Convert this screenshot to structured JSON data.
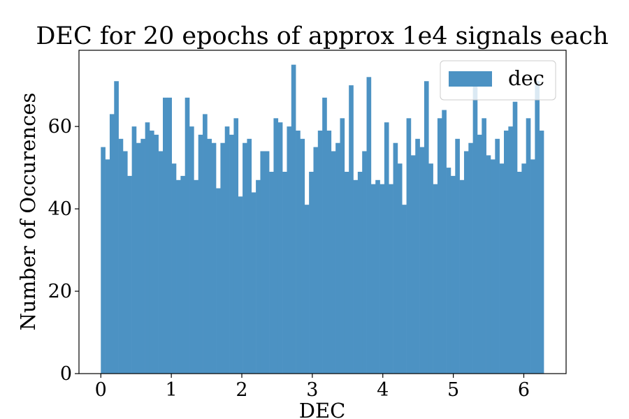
{
  "chart_data": {
    "type": "bar",
    "title": "DEC for 20 epochs of approx 1e4 signals each",
    "xlabel": "DEC",
    "ylabel": "Number of Occurences",
    "xlim": [
      -0.31,
      6.6
    ],
    "ylim": [
      0,
      78.5
    ],
    "x_ticks": [
      0,
      1,
      2,
      3,
      4,
      5,
      6
    ],
    "y_ticks": [
      0,
      20,
      40,
      60
    ],
    "bin_start": 0,
    "bin_end": 6.2832,
    "grid": false,
    "legend_position": "top-right",
    "series": [
      {
        "name": "dec",
        "color": "#4c92c3",
        "values": [
          55,
          52,
          63,
          71,
          57,
          54,
          48,
          60,
          56,
          57,
          61,
          59,
          58,
          54,
          67,
          67,
          51,
          47,
          48,
          67,
          60,
          47,
          58,
          63,
          57,
          56,
          45,
          56,
          60,
          58,
          62,
          43,
          56,
          57,
          44,
          47,
          54,
          54,
          49,
          62,
          61,
          49,
          60,
          75,
          59,
          57,
          41,
          49,
          55,
          59,
          67,
          59,
          54,
          56,
          62,
          49,
          70,
          47,
          49,
          54,
          72,
          46,
          47,
          46,
          61,
          46,
          56,
          51,
          41,
          62,
          53,
          57,
          55,
          71,
          51,
          46,
          62,
          64,
          50,
          48,
          57,
          47,
          54,
          56,
          71,
          58,
          62,
          53,
          52,
          57,
          51,
          59,
          60,
          66,
          49,
          51,
          62,
          52,
          71,
          59
        ]
      }
    ]
  }
}
